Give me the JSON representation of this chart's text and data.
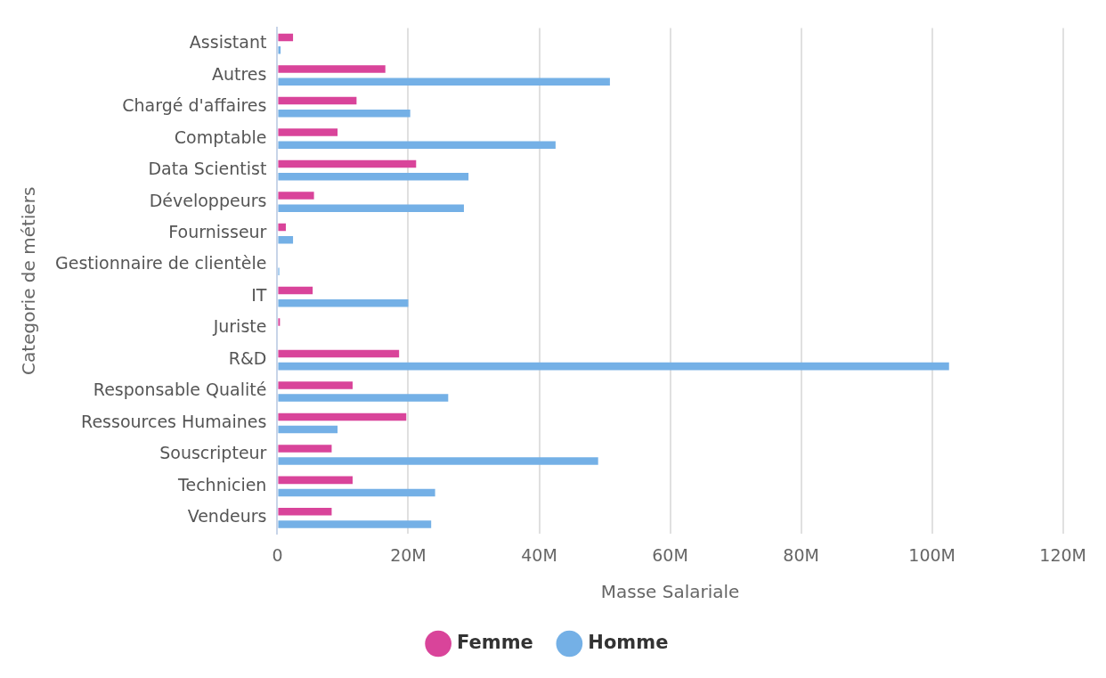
{
  "chart_data": {
    "type": "bar",
    "orientation": "horizontal",
    "xlabel": "Masse Salariale",
    "ylabel": "Categorie de métiers",
    "categories": [
      "Assistant",
      "Autres",
      "Chargé d'affaires",
      "Comptable",
      "Data Scientist",
      "Développeurs",
      "Fournisseur",
      "Gestionnaire de clientèle",
      "IT",
      "Juriste",
      "R&D",
      "Responsable Qualité",
      "Ressources Humaines",
      "Souscripteur",
      "Technicien",
      "Vendeurs"
    ],
    "series": [
      {
        "name": "Femme",
        "color": "#d9449a",
        "values": [
          2.4,
          16.5,
          12.1,
          9.2,
          21.2,
          5.6,
          1.3,
          0,
          5.4,
          0.4,
          18.6,
          11.5,
          19.7,
          8.3,
          11.5,
          8.3
        ]
      },
      {
        "name": "Homme",
        "color": "#74b0e6",
        "values": [
          0.5,
          50.8,
          20.3,
          42.5,
          29.2,
          28.5,
          2.4,
          0.3,
          20.0,
          0,
          102.6,
          26.1,
          9.2,
          49.0,
          24.1,
          23.5
        ]
      }
    ],
    "xlim": [
      0,
      120
    ],
    "xticks": [
      0,
      {
        "value": 20,
        "label": "20M"
      },
      {
        "value": 40,
        "label": "40M"
      },
      {
        "value": 60,
        "label": "60M"
      },
      {
        "value": 80,
        "label": "80M"
      },
      {
        "value": 100,
        "label": "100M"
      },
      {
        "value": 120,
        "label": "120M"
      }
    ],
    "grid": "x",
    "legend": "bottom"
  }
}
